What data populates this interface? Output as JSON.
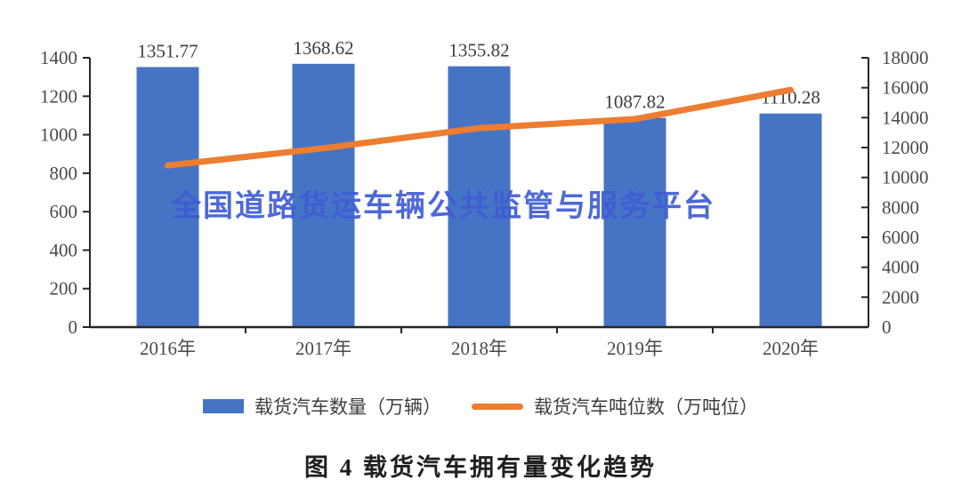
{
  "watermark": {
    "text": "全国道路货运车辆公共监管与服务平台",
    "color": "#3E5CD5"
  },
  "caption": "图 4  载货汽车拥有量变化趋势",
  "legend": {
    "items": [
      {
        "label": "载货汽车数量（万辆）",
        "type": "bar",
        "color": "#4574C5"
      },
      {
        "label": "载货汽车吨位数（万吨位）",
        "type": "line",
        "color": "#ED7D31"
      }
    ]
  },
  "chart_data": {
    "type": "bar",
    "subtype": "bar-line-combo",
    "title": "图 4 载货汽车拥有量变化趋势",
    "categories": [
      "2016年",
      "2017年",
      "2018年",
      "2019年",
      "2020年"
    ],
    "series": [
      {
        "name": "载货汽车数量（万辆）",
        "type": "bar",
        "axis": "left",
        "color": "#4574C5",
        "values": [
          1351.77,
          1368.62,
          1355.82,
          1087.82,
          1110.28
        ],
        "data_labels": [
          "1351.77",
          "1368.62",
          "1355.82",
          "1087.82",
          "1110.28"
        ]
      },
      {
        "name": "载货汽车吨位数（万吨位）",
        "type": "line",
        "axis": "right",
        "color": "#ED7D31",
        "values": [
          10800,
          11950,
          13300,
          13900,
          15850
        ]
      }
    ],
    "left_axis": {
      "min": 0,
      "max": 1400,
      "step": 200,
      "tick_labels": [
        "0",
        "200",
        "400",
        "600",
        "800",
        "1000",
        "1200",
        "1400"
      ]
    },
    "right_axis": {
      "min": 0,
      "max": 18000,
      "step": 2000,
      "tick_labels": [
        "0",
        "2000",
        "4000",
        "6000",
        "8000",
        "10000",
        "12000",
        "14000",
        "16000",
        "18000"
      ]
    },
    "grid": false,
    "legend_position": "bottom",
    "label_color": "#4a4a4a",
    "value_label_color": "#3c3c3c",
    "axis_color": "#262626"
  }
}
